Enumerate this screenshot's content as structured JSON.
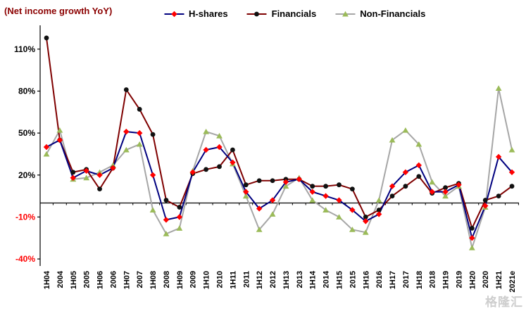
{
  "watermark": "格隆汇",
  "chart_data": {
    "type": "line",
    "title": "(Net income growth YoY)",
    "title_color": "#8B0000",
    "grid": false,
    "legend_position": "top",
    "ylim": [
      -45,
      125
    ],
    "y_ticks": [
      110,
      80,
      50,
      20,
      -10,
      -40
    ],
    "tick_color": "#000000",
    "negative_tick_color": "#FF0000",
    "categories": [
      "1H04",
      "2004",
      "1H05",
      "2005",
      "1H06",
      "2006",
      "1H07",
      "2007",
      "1H08",
      "2008",
      "1H09",
      "2009",
      "1H10",
      "2010",
      "1H11",
      "2011",
      "1H12",
      "2012",
      "1H13",
      "2013",
      "1H14",
      "2014",
      "1H15",
      "2015",
      "1H16",
      "2016",
      "1H17",
      "2017",
      "1H18",
      "2018",
      "1H19",
      "2019",
      "1H20",
      "2020",
      "1H21",
      "2021e"
    ],
    "series": [
      {
        "name": "H-shares",
        "line_color": "#00007F",
        "marker_color": "#FF0000",
        "marker": "diamond",
        "values": [
          40,
          45,
          18,
          23,
          20,
          25,
          51,
          50,
          20,
          -12,
          -10,
          22,
          38,
          40,
          29,
          8,
          -4,
          2,
          15,
          17,
          8,
          5,
          2,
          -5,
          -13,
          -8,
          12,
          22,
          27,
          8,
          8,
          13,
          -25,
          -2,
          33,
          22
        ]
      },
      {
        "name": "Financials",
        "line_color": "#7F0000",
        "marker_color": "#111111",
        "marker": "circle",
        "values": [
          118,
          45,
          22,
          24,
          10,
          25,
          81,
          67,
          49,
          2,
          -3,
          21,
          24,
          26,
          38,
          13,
          16,
          16,
          17,
          17,
          12,
          12,
          13,
          10,
          -10,
          -5,
          5,
          12,
          19,
          7,
          11,
          14,
          -18,
          2,
          5,
          12
        ]
      },
      {
        "name": "Non-Financials",
        "line_color": "#A6A6A6",
        "marker_color": "#9BBB59",
        "marker": "triangle",
        "values": [
          35,
          52,
          17,
          18,
          22,
          27,
          38,
          42,
          -5,
          -22,
          -18,
          23,
          51,
          48,
          28,
          5,
          -19,
          -8,
          12,
          18,
          2,
          -5,
          -10,
          -19,
          -21,
          2,
          45,
          52,
          42,
          15,
          5,
          12,
          -32,
          -3,
          82,
          38
        ]
      }
    ]
  }
}
